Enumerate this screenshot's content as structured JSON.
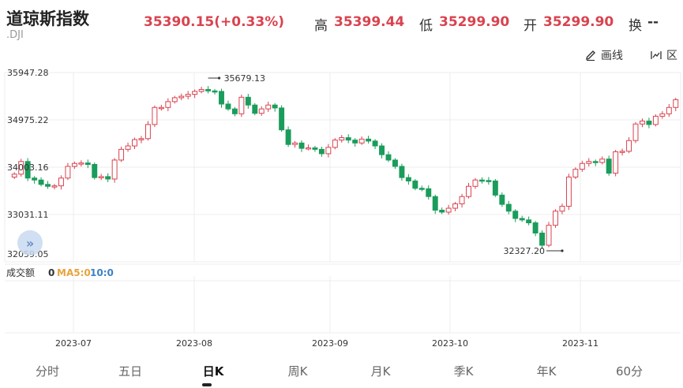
{
  "header": {
    "name": "道琼斯指数",
    "code": ".DJI",
    "price_change": "35390.15(+0.33%)",
    "high_label": "高",
    "high_value": "35399.44",
    "low_label": "低",
    "low_value": "35299.90",
    "open_label": "开",
    "open_value": "35299.90",
    "turnover_label": "换",
    "turnover_value": "--"
  },
  "toolbar": {
    "draw_label": "画线",
    "range_label": "区"
  },
  "volume": {
    "label": "成交额",
    "value": "0",
    "ma5": "MA5:0",
    "ma10": "10:0"
  },
  "tabs": [
    {
      "label": "分时",
      "active": false
    },
    {
      "label": "五日",
      "active": false
    },
    {
      "label": "日K",
      "active": true
    },
    {
      "label": "周K",
      "active": false
    },
    {
      "label": "月K",
      "active": false
    },
    {
      "label": "季K",
      "active": false
    },
    {
      "label": "年K",
      "active": false
    },
    {
      "label": "60分",
      "active": false
    }
  ],
  "colors": {
    "up": "#d9434f",
    "down": "#1a9c5b",
    "ma5": "#e8a33d",
    "ma10": "#3c82c4",
    "grid": "#ececec"
  },
  "icons": [
    "pencil-icon",
    "range-icon",
    "double-chevron-right-icon"
  ],
  "chart_data": {
    "type": "candlestick",
    "y_ticks": [
      "35947.28",
      "34975.22",
      "34003.16",
      "33031.11",
      "32059.05"
    ],
    "ylim": [
      32059.05,
      35947.28
    ],
    "x_ticks": [
      "2023-07",
      "2023-08",
      "2023-09",
      "2023-10",
      "2023-11"
    ],
    "high_annotation": "35679.13",
    "low_annotation": "32327.20",
    "series_close": [
      33860,
      34120,
      33780,
      33740,
      33650,
      33610,
      33620,
      33780,
      34020,
      34080,
      34090,
      34060,
      33790,
      33810,
      33760,
      34150,
      34370,
      34440,
      34570,
      34590,
      34880,
      35230,
      35230,
      35350,
      35430,
      35460,
      35500,
      35560,
      35600,
      35570,
      35560,
      35300,
      35200,
      35100,
      35440,
      35280,
      35110,
      35200,
      35280,
      35220,
      34770,
      34470,
      34500,
      34390,
      34400,
      34370,
      34280,
      34410,
      34560,
      34610,
      34560,
      34500,
      34580,
      34540,
      34440,
      34260,
      34150,
      34020,
      33790,
      33720,
      33570,
      33560,
      33400,
      33120,
      33080,
      33160,
      33250,
      33400,
      33610,
      33740,
      33730,
      33720,
      33430,
      33240,
      33100,
      32950,
      32920,
      32860,
      32650,
      32400,
      32810,
      33100,
      33200,
      33800,
      33960,
      34080,
      34120,
      34100,
      34170,
      33880,
      34320,
      34330,
      34550,
      34890,
      34950,
      34880,
      35050,
      35100,
      35230,
      35390
    ],
    "date_ticks_index": [
      12,
      36,
      61,
      83,
      106
    ]
  }
}
